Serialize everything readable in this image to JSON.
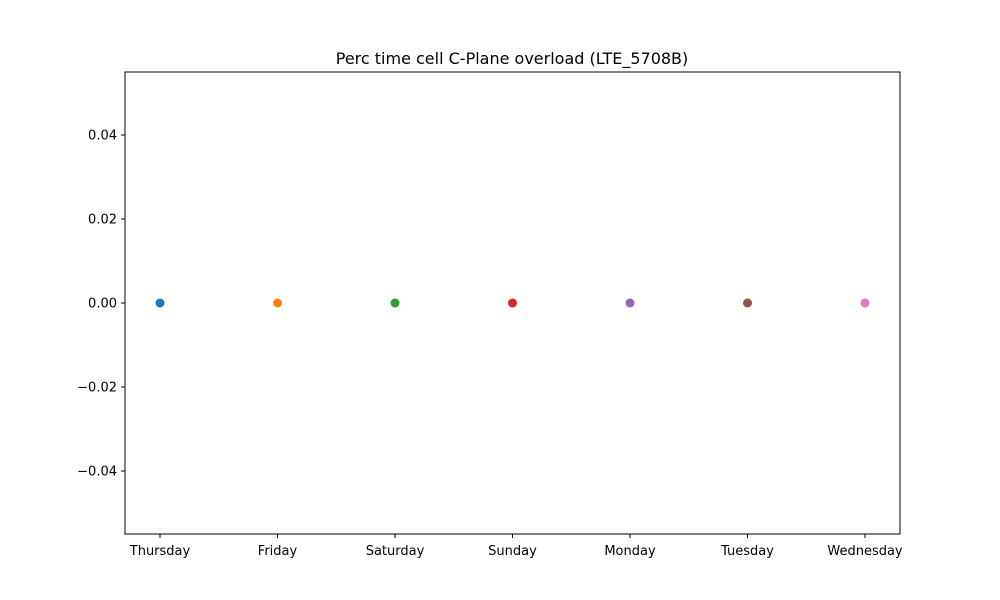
{
  "chart_data": {
    "type": "scatter",
    "title": "Perc time cell C-Plane overload (LTE_5708B)",
    "xlabel": "",
    "ylabel": "",
    "categories": [
      "Thursday",
      "Friday",
      "Saturday",
      "Sunday",
      "Monday",
      "Tuesday",
      "Wednesday"
    ],
    "values": [
      0,
      0,
      0,
      0,
      0,
      0,
      0
    ],
    "colors": [
      "#1f77b4",
      "#ff7f0e",
      "#2ca02c",
      "#d62728",
      "#9467bd",
      "#8c564b",
      "#e377c2"
    ],
    "ylim": [
      -0.055,
      0.055
    ],
    "yticks": [
      -0.04,
      -0.02,
      0.0,
      0.02,
      0.04
    ],
    "ytick_labels": [
      "−0.04",
      "−0.02",
      "0.00",
      "0.02",
      "0.04"
    ],
    "grid": false,
    "legend": "none"
  }
}
